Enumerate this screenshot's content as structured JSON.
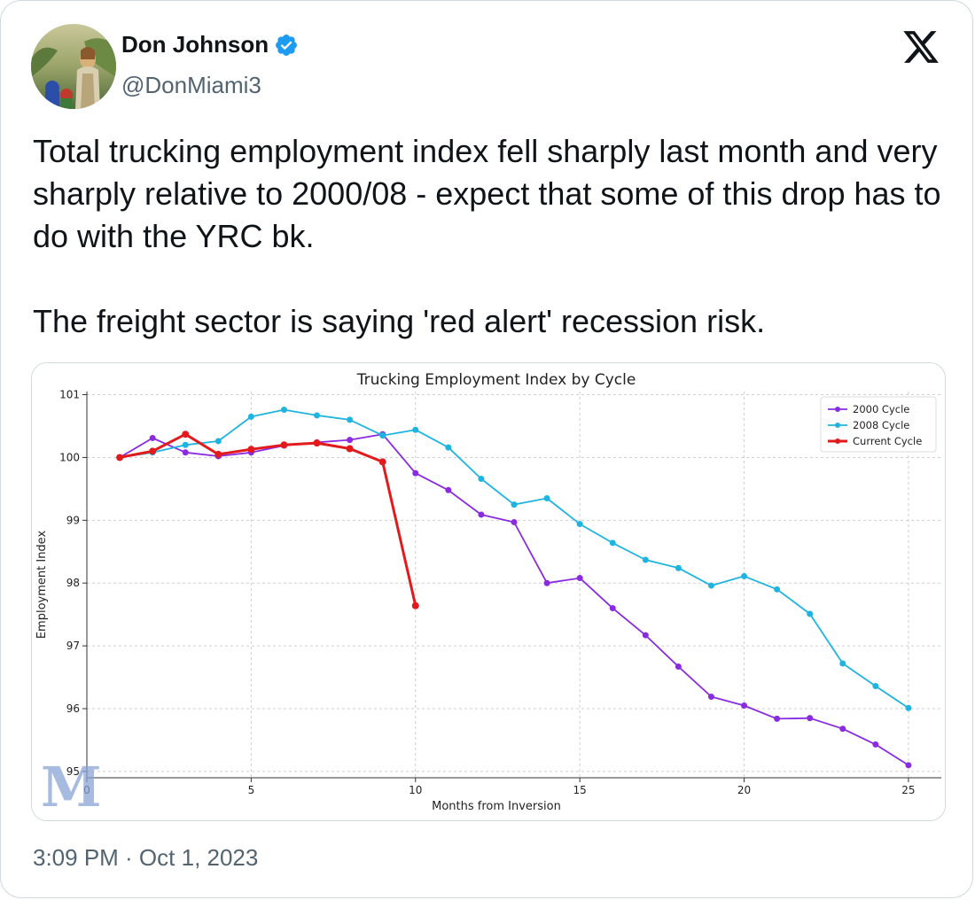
{
  "tweet": {
    "author_name": "Don Johnson",
    "author_handle": "@DonMiami3",
    "text_paragraph_1": "Total trucking employment index fell sharply last month and very sharply relative to 2000/08 - expect that some of this drop has to do with the YRC bk.",
    "text_paragraph_2": "The freight sector is saying 'red alert' recession risk.",
    "timestamp": "3:09 PM · Oct 1, 2023",
    "icons": {
      "avatar": "avatar-image",
      "verified": "verified-badge-icon",
      "logo": "x-logo-icon"
    },
    "colors": {
      "verified": "#1d9bf0",
      "text": "#0f1419",
      "muted": "#536471"
    }
  },
  "chart_data": {
    "type": "line",
    "title": "Trucking Employment Index by Cycle",
    "xlabel": "Months from Inversion",
    "ylabel": "Employment Index",
    "xlim": [
      0,
      26
    ],
    "ylim": [
      94.9,
      101.05
    ],
    "xticks": [
      0,
      5,
      10,
      15,
      20,
      25
    ],
    "yticks": [
      95,
      96,
      97,
      98,
      99,
      100,
      101
    ],
    "grid": true,
    "legend": "top-right",
    "watermark": "M",
    "series": [
      {
        "name": "2000 Cycle",
        "color": "#8a2be2",
        "x": [
          1,
          2,
          3,
          4,
          5,
          6,
          7,
          8,
          9,
          10,
          11,
          12,
          13,
          14,
          15,
          16,
          17,
          18,
          19,
          20,
          21,
          22,
          23,
          24,
          25
        ],
        "values": [
          100.0,
          100.31,
          100.08,
          100.02,
          100.08,
          100.19,
          100.24,
          100.28,
          100.37,
          99.75,
          99.48,
          99.09,
          98.97,
          98.0,
          98.08,
          97.6,
          97.17,
          96.67,
          96.19,
          96.05,
          95.84,
          95.85,
          95.68,
          95.43,
          95.1
        ]
      },
      {
        "name": "2008 Cycle",
        "color": "#1fb4e0",
        "x": [
          1,
          2,
          3,
          4,
          5,
          6,
          7,
          8,
          9,
          10,
          11,
          12,
          13,
          14,
          15,
          16,
          17,
          18,
          19,
          20,
          21,
          22,
          23,
          24,
          25
        ],
        "values": [
          100.0,
          100.08,
          100.2,
          100.26,
          100.65,
          100.76,
          100.67,
          100.6,
          100.35,
          100.44,
          100.16,
          99.66,
          99.25,
          99.35,
          98.94,
          98.64,
          98.37,
          98.24,
          97.96,
          98.11,
          97.9,
          97.51,
          96.72,
          96.36,
          96.01
        ]
      },
      {
        "name": "Current Cycle",
        "color": "#e31a1c",
        "x": [
          1,
          2,
          3,
          4,
          5,
          6,
          7,
          8,
          9,
          10
        ],
        "values": [
          100.0,
          100.1,
          100.37,
          100.05,
          100.13,
          100.2,
          100.23,
          100.14,
          99.93,
          97.64
        ]
      }
    ]
  }
}
